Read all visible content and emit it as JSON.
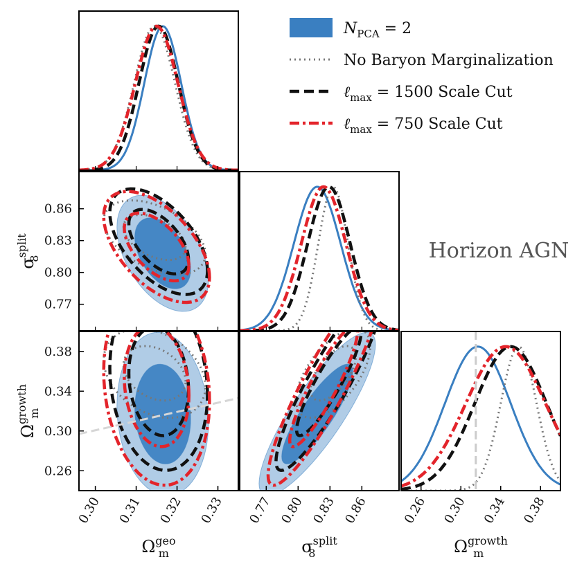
{
  "chart_data": {
    "type": "corner",
    "annotation": "Horizon AGN",
    "parameters": [
      {
        "key": "omega_geo",
        "base": "Ω",
        "sub": "m",
        "sup": "geo",
        "range": [
          0.296,
          0.335
        ],
        "ticks": [
          "0.30",
          "0.31",
          "0.32",
          "0.33"
        ]
      },
      {
        "key": "sigma8_split",
        "base": "σ",
        "sub": "8",
        "sup": "split",
        "range": [
          0.745,
          0.895
        ],
        "ticks": [
          "0.77",
          "0.80",
          "0.83",
          "0.86"
        ]
      },
      {
        "key": "omega_growth",
        "base": "Ω",
        "sub": "m",
        "sup": "growth",
        "range": [
          0.24,
          0.4
        ],
        "ticks": [
          "0.26",
          "0.30",
          "0.34",
          "0.38"
        ]
      }
    ],
    "reference_value": {
      "omega_growth": 0.315
    },
    "series": [
      {
        "name": "N_PCA = 2",
        "legend_base": "N",
        "legend_sub": "PCA",
        "legend_rest": " = 2",
        "color": "#3a7fc1",
        "style": "filled",
        "means": [
          0.3165,
          0.818,
          0.317
        ],
        "sigmas": [
          0.0045,
          0.022,
          0.033
        ],
        "rho": {
          "0-1": -0.45,
          "0-2": -0.1,
          "1-2": 0.85
        }
      },
      {
        "name": "No Baryon Marginalization",
        "legend_base": "No Baryon Marginalization",
        "color": "#777777",
        "style": "dotted",
        "means": [
          0.3145,
          0.833,
          0.358
        ],
        "sigmas": [
          0.005,
          0.014,
          0.018
        ],
        "rho": {
          "0-1": -0.45,
          "0-2": -0.3,
          "1-2": 0.6
        }
      },
      {
        "name": "ℓmax = 1500 Scale Cut",
        "legend_base": "ℓ",
        "legend_sub": "max",
        "legend_rest": " = 1500 Scale Cut",
        "color": "#111111",
        "style": "dashed",
        "means": [
          0.3155,
          0.829,
          0.35
        ],
        "sigmas": [
          0.0048,
          0.02,
          0.036
        ],
        "rho": {
          "0-1": -0.55,
          "0-2": -0.15,
          "1-2": 0.9
        }
      },
      {
        "name": "ℓmax = 750 Scale Cut",
        "legend_base": "ℓ",
        "legend_sub": "max",
        "legend_rest": " = 750 Scale Cut",
        "color": "#e3242b",
        "style": "dashdot",
        "means": [
          0.315,
          0.824,
          0.345
        ],
        "sigmas": [
          0.0052,
          0.021,
          0.04
        ],
        "rho": {
          "0-1": -0.55,
          "0-2": -0.15,
          "1-2": 0.9
        }
      }
    ],
    "grid": false,
    "legend_position": "top-right"
  }
}
